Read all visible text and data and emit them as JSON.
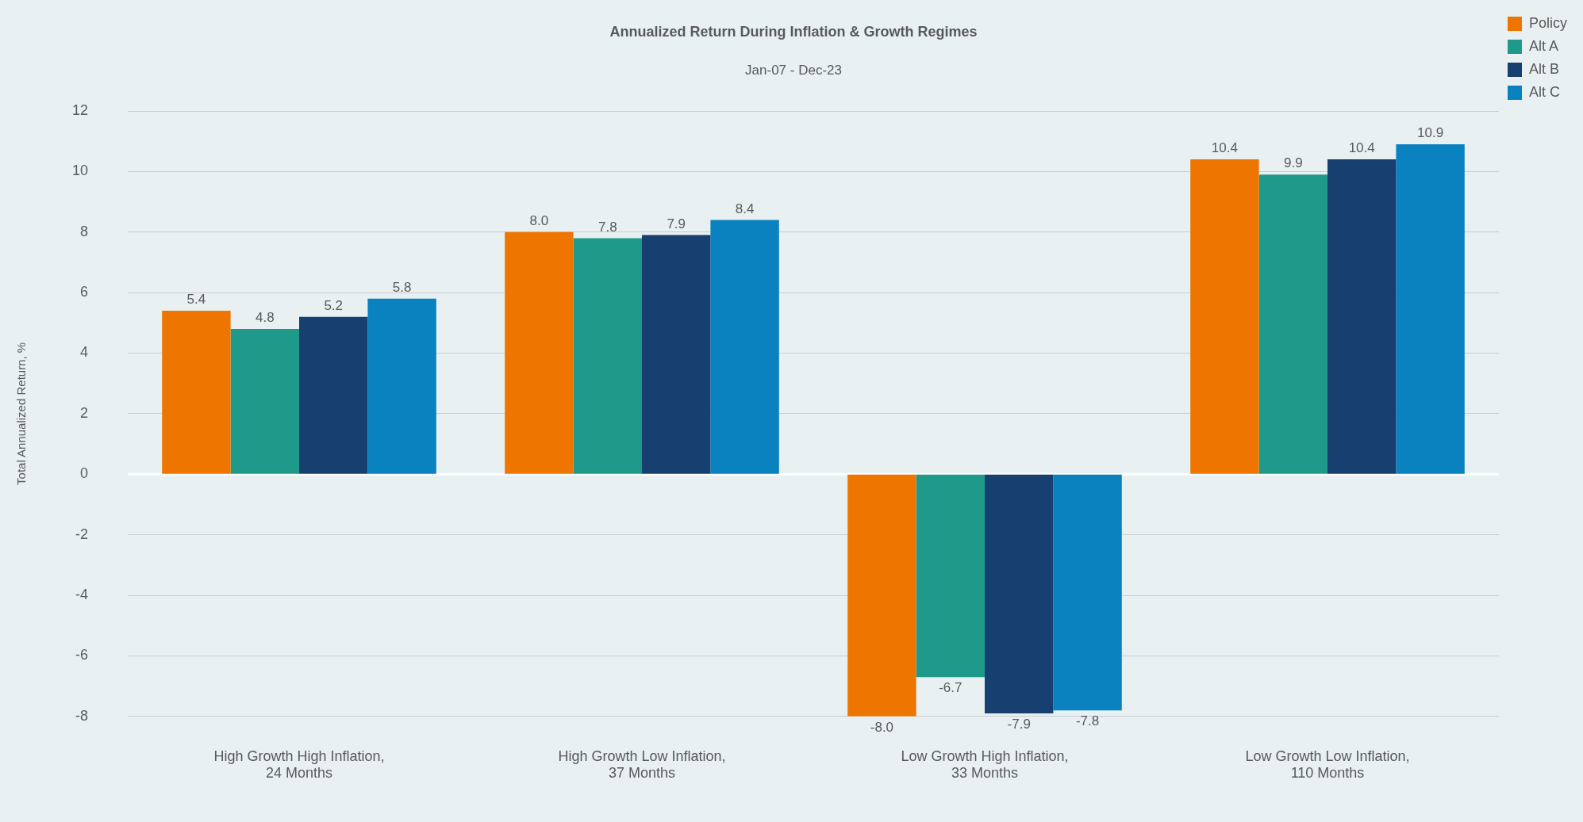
{
  "chart_data": {
    "type": "bar",
    "title": "Annualized Return During Inflation & Growth Regimes",
    "subtitle": "Jan-07 - Dec-23",
    "ylabel": "Total Annualized Return, %",
    "categories": [
      "High Growth High Inflation, 24 Months",
      "High Growth Low Inflation, 37 Months",
      "Low Growth High Inflation, 33 Months",
      "Low Growth Low Inflation, 110 Months"
    ],
    "series": [
      {
        "name": "Policy",
        "color": "#ee7600",
        "values": [
          5.4,
          8.0,
          -8.0,
          10.4
        ],
        "value_labels": [
          "5.4",
          "8.0",
          "-8.0",
          "10.4"
        ]
      },
      {
        "name": "Alt A",
        "color": "#1f9a8a",
        "values": [
          4.8,
          7.8,
          -6.7,
          9.9
        ],
        "value_labels": [
          "4.8",
          "7.8",
          "-6.7",
          "9.9"
        ]
      },
      {
        "name": "Alt B",
        "color": "#173f6f",
        "values": [
          5.2,
          7.9,
          -7.9,
          10.4
        ],
        "value_labels": [
          "5.2",
          "7.9",
          "-7.9",
          "10.4"
        ]
      },
      {
        "name": "Alt C",
        "color": "#0a82c0",
        "values": [
          5.8,
          8.4,
          -7.8,
          10.9
        ],
        "value_labels": [
          "5.8",
          "8.4",
          "-7.8",
          "10.9"
        ]
      }
    ],
    "ylim": [
      -8,
      12
    ],
    "yticks": [
      -8,
      -6,
      -4,
      -2,
      0,
      2,
      4,
      6,
      8,
      10,
      12
    ],
    "grid": "y",
    "legend": "top right"
  }
}
